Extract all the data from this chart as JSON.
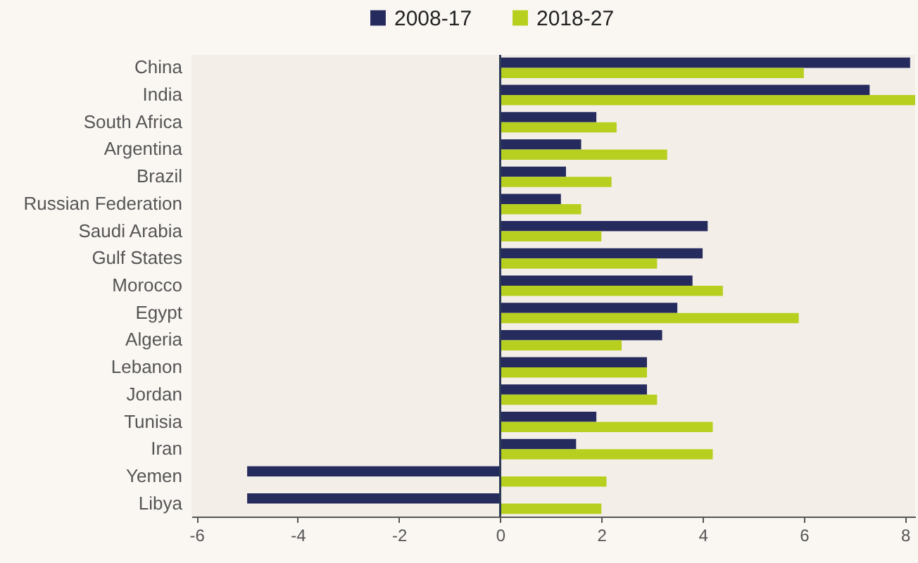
{
  "chart_data": {
    "type": "bar",
    "orientation": "horizontal",
    "categories": [
      "China",
      "India",
      "South Africa",
      "Argentina",
      "Brazil",
      "Russian Federation",
      "Saudi Arabia",
      "Gulf States",
      "Morocco",
      "Egypt",
      "Algeria",
      "Lebanon",
      "Jordan",
      "Tunisia",
      "Iran",
      "Yemen",
      "Libya"
    ],
    "series": [
      {
        "name": "2008-17",
        "color": "#262b5e",
        "values": [
          8.1,
          7.3,
          1.9,
          1.6,
          1.3,
          1.2,
          4.1,
          4.0,
          3.8,
          3.5,
          3.2,
          2.9,
          2.9,
          1.9,
          1.5,
          -5.0,
          -5.0
        ]
      },
      {
        "name": "2018-27",
        "color": "#b7cf1f",
        "values": [
          6.0,
          8.2,
          2.3,
          3.3,
          2.2,
          1.6,
          2.0,
          3.1,
          4.4,
          5.9,
          2.4,
          2.9,
          3.1,
          4.2,
          4.2,
          2.1,
          2.0
        ]
      }
    ],
    "xlim": [
      -6.1,
      8.2
    ],
    "xticks": [
      -6,
      -4,
      -2,
      0,
      2,
      4,
      6,
      8
    ],
    "legend": "top",
    "grid": false,
    "ref_lines": [
      {
        "axis": "x",
        "value": 0,
        "color": "#2b3a55"
      }
    ]
  }
}
